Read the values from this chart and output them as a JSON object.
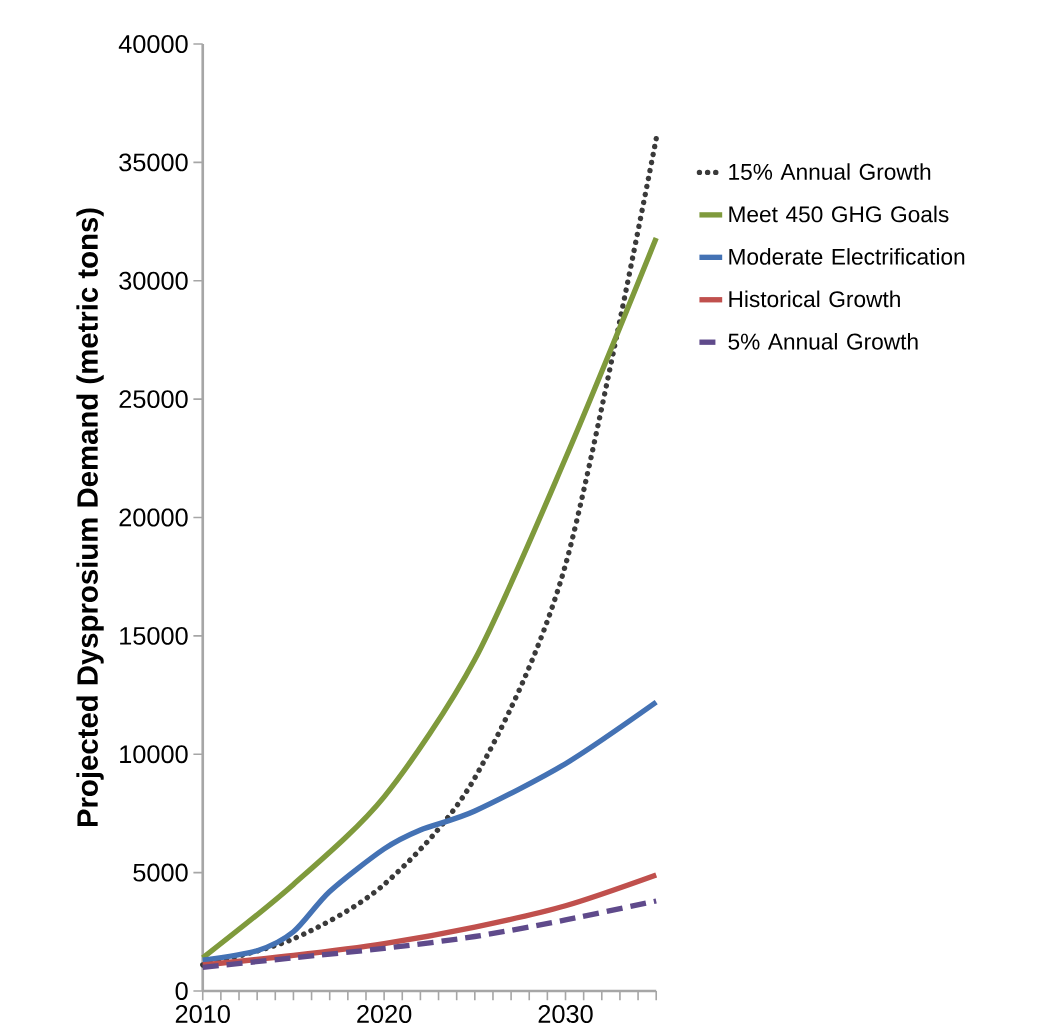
{
  "chart_data": {
    "type": "line",
    "ylabel": "Projected Dysprosium Demand (metric tons)",
    "xlim": [
      2010,
      2035
    ],
    "ylim": [
      0,
      40000
    ],
    "xticks": [
      2010,
      {
        "value": 2011,
        "label": null
      },
      {
        "value": 2012,
        "label": null
      },
      {
        "value": 2013,
        "label": null
      },
      {
        "value": 2014,
        "label": null
      },
      {
        "value": 2015,
        "label": null
      },
      {
        "value": 2016,
        "label": null
      },
      {
        "value": 2017,
        "label": null
      },
      {
        "value": 2018,
        "label": null
      },
      {
        "value": 2019,
        "label": null
      },
      2020,
      {
        "value": 2021,
        "label": null
      },
      {
        "value": 2022,
        "label": null
      },
      {
        "value": 2023,
        "label": null
      },
      {
        "value": 2024,
        "label": null
      },
      {
        "value": 2025,
        "label": null
      },
      {
        "value": 2026,
        "label": null
      },
      {
        "value": 2027,
        "label": null
      },
      {
        "value": 2028,
        "label": null
      },
      {
        "value": 2029,
        "label": null
      },
      2030,
      {
        "value": 2031,
        "label": null
      },
      {
        "value": 2032,
        "label": null
      },
      {
        "value": 2033,
        "label": null
      },
      {
        "value": 2034,
        "label": null
      },
      {
        "value": 2035,
        "label": null
      }
    ],
    "yticks": [
      0,
      5000,
      10000,
      15000,
      20000,
      25000,
      30000,
      35000,
      40000
    ],
    "grid": false,
    "legend": "right",
    "marker": "none",
    "series": [
      {
        "name": "15% Annual Growth",
        "color": "#3a3a3a",
        "line_style": "dotted",
        "x": [
          2010,
          2015,
          2020,
          2025,
          2030,
          2035
        ],
        "values": [
          1100,
          2200,
          4500,
          9000,
          18000,
          36000
        ]
      },
      {
        "name": "Meet 450 GHG Goals",
        "color": "#7f9a3c",
        "line_style": "solid",
        "x": [
          2010,
          2015,
          2020,
          2025,
          2030,
          2035
        ],
        "values": [
          1400,
          4500,
          8200,
          14000,
          22500,
          31800
        ]
      },
      {
        "name": "Moderate Electrification",
        "color": "#4472b4",
        "line_style": "solid",
        "x": [
          2010,
          2013,
          2015,
          2017,
          2020,
          2022,
          2025,
          2030,
          2035
        ],
        "values": [
          1300,
          1700,
          2500,
          4200,
          6000,
          6800,
          7600,
          9600,
          12200
        ]
      },
      {
        "name": "Historical Growth",
        "color": "#c0504d",
        "line_style": "solid",
        "x": [
          2010,
          2015,
          2020,
          2025,
          2030,
          2035
        ],
        "values": [
          1100,
          1500,
          2000,
          2700,
          3600,
          4900
        ]
      },
      {
        "name": "5% Annual Growth",
        "color": "#5f4a8b",
        "line_style": "dashed",
        "x": [
          2010,
          2015,
          2020,
          2025,
          2030,
          2035
        ],
        "values": [
          1000,
          1400,
          1800,
          2300,
          3000,
          3800
        ]
      }
    ]
  }
}
